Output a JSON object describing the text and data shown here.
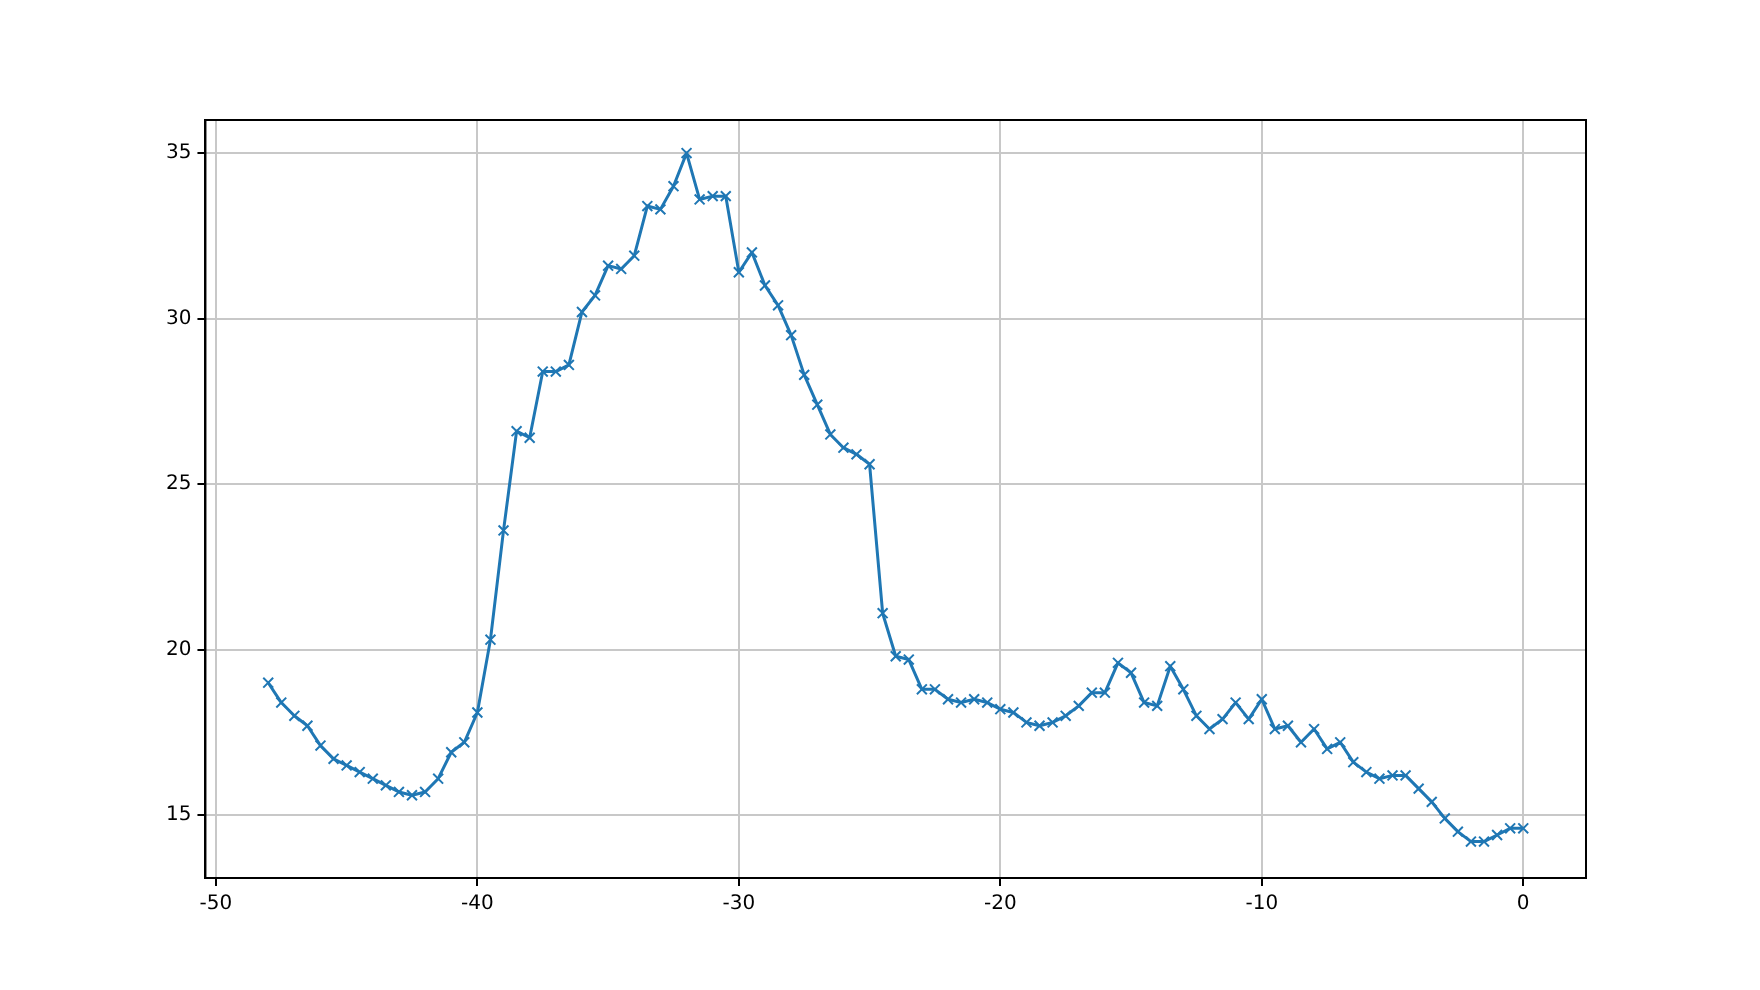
{
  "chart_data": {
    "type": "line",
    "marker": "cross",
    "grid": true,
    "xlim": [
      -50.4,
      2.4
    ],
    "ylim": [
      13.1,
      36.0
    ],
    "xticks": [
      -50,
      -40,
      -30,
      -20,
      -10,
      0
    ],
    "yticks": [
      15,
      20,
      25,
      30,
      35
    ],
    "x": [
      -48,
      -47.5,
      -47,
      -46.5,
      -46,
      -45.5,
      -45,
      -44.5,
      -44,
      -43.5,
      -43,
      -42.5,
      -42,
      -41.5,
      -41,
      -40.5,
      -40,
      -39.5,
      -39,
      -38.5,
      -38,
      -37.5,
      -37,
      -36.5,
      -36,
      -35.5,
      -35,
      -34.5,
      -34,
      -33.5,
      -33,
      -32.5,
      -32,
      -31.5,
      -31,
      -30.5,
      -30,
      -29.5,
      -29,
      -28.5,
      -28,
      -27.5,
      -27,
      -26.5,
      -26,
      -25.5,
      -25,
      -24.5,
      -24,
      -23.5,
      -23,
      -22.5,
      -22,
      -21.5,
      -21,
      -20.5,
      -20,
      -19.5,
      -19,
      -18.5,
      -18,
      -17.5,
      -17,
      -16.5,
      -16,
      -15.5,
      -15,
      -14.5,
      -14,
      -13.5,
      -13,
      -12.5,
      -12,
      -11.5,
      -11,
      -10.5,
      -10,
      -9.5,
      -9,
      -8.5,
      -8,
      -7.5,
      -7,
      -6.5,
      -6,
      -5.5,
      -5,
      -4.5,
      -4,
      -3.5,
      -3,
      -2.5,
      -2,
      -1.5,
      -1,
      -0.5,
      0
    ],
    "series": [
      {
        "color": "#1f77b4",
        "values": [
          19.0,
          18.4,
          18.0,
          17.7,
          17.1,
          16.7,
          16.5,
          16.3,
          16.1,
          15.9,
          15.7,
          15.6,
          15.7,
          16.1,
          16.9,
          17.2,
          18.1,
          20.3,
          23.6,
          26.6,
          26.4,
          28.4,
          28.4,
          28.6,
          30.2,
          30.7,
          31.6,
          31.5,
          31.9,
          33.4,
          33.3,
          34.0,
          35.0,
          33.6,
          33.7,
          33.7,
          31.4,
          32.0,
          31.0,
          30.4,
          29.5,
          28.3,
          27.4,
          26.5,
          26.1,
          25.9,
          25.6,
          21.1,
          19.8,
          19.7,
          18.8,
          18.8,
          18.5,
          18.4,
          18.5,
          18.4,
          18.2,
          18.1,
          17.8,
          17.7,
          17.8,
          18.0,
          18.3,
          18.7,
          18.7,
          19.6,
          19.3,
          18.4,
          18.3,
          19.5,
          18.8,
          18.0,
          17.6,
          17.9,
          18.4,
          17.9,
          18.5,
          17.6,
          17.7,
          17.2,
          17.6,
          17.0,
          17.2,
          16.6,
          16.3,
          16.1,
          16.2,
          16.2,
          15.8,
          15.4,
          14.9,
          14.5,
          14.2,
          14.2,
          14.4,
          14.6,
          14.6
        ]
      }
    ]
  }
}
